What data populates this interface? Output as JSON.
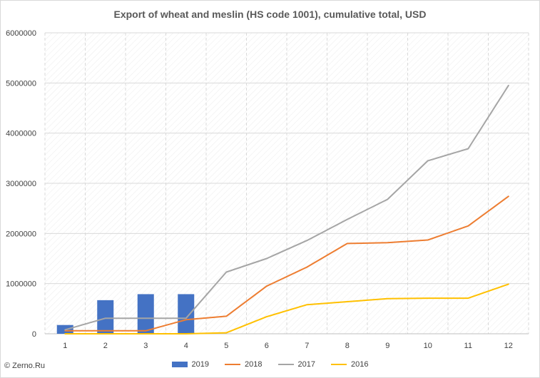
{
  "chart_data": {
    "type": "bar+line",
    "title": "Export of wheat and meslin (HS code 1001), cumulative total, USD",
    "categories": [
      "1",
      "2",
      "3",
      "4",
      "5",
      "6",
      "7",
      "8",
      "9",
      "10",
      "11",
      "12"
    ],
    "ylim": [
      0,
      6000000
    ],
    "y_ticks": [
      "0",
      "1000000",
      "2000000",
      "3000000",
      "4000000",
      "5000000",
      "6000000"
    ],
    "y_tick_values": [
      0,
      1000000,
      2000000,
      3000000,
      4000000,
      5000000,
      6000000
    ],
    "grid": "dashed-hatched",
    "legend_position": "bottom",
    "series": [
      {
        "name": "2019",
        "kind": "bar",
        "color": "#4472c4",
        "values": [
          175000,
          670000,
          790000,
          790000,
          null,
          null,
          null,
          null,
          null,
          null,
          null,
          null
        ]
      },
      {
        "name": "2018",
        "kind": "line",
        "color": "#ed7d31",
        "values": [
          60000,
          60000,
          60000,
          280000,
          350000,
          950000,
          1330000,
          1800000,
          1815000,
          1870000,
          2150000,
          2740000
        ]
      },
      {
        "name": "2017",
        "kind": "line",
        "color": "#a5a5a5",
        "values": [
          80000,
          310000,
          310000,
          310000,
          1230000,
          1500000,
          1860000,
          2280000,
          2680000,
          3450000,
          3690000,
          4950000
        ]
      },
      {
        "name": "2016",
        "kind": "line",
        "color": "#ffc000",
        "values": [
          0,
          0,
          0,
          0,
          20000,
          340000,
          580000,
          640000,
          700000,
          710000,
          710000,
          990000
        ]
      }
    ]
  },
  "source_note": "© Zerno.Ru"
}
